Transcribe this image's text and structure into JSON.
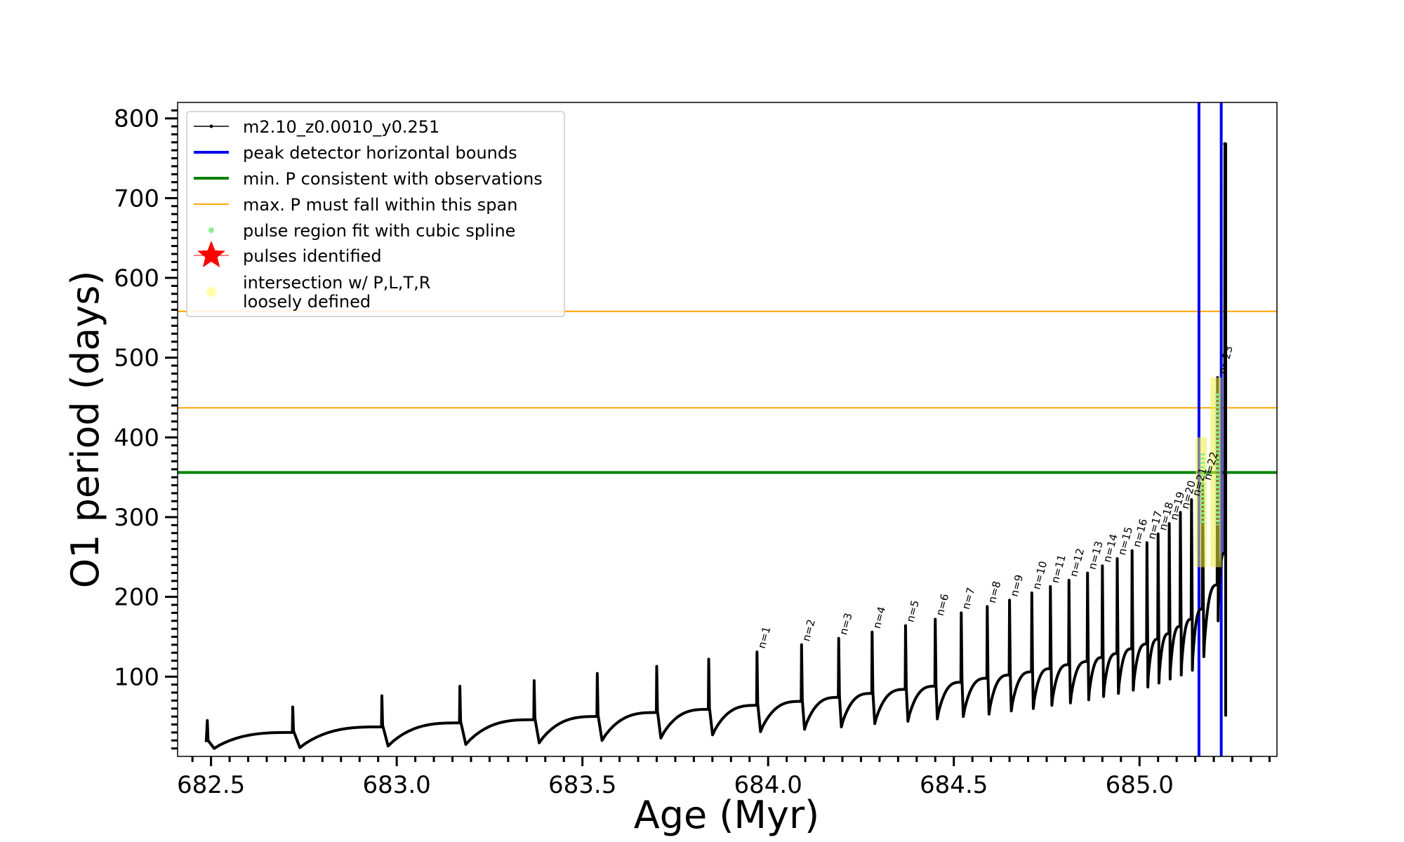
{
  "chart_data": {
    "type": "line",
    "xlabel": "Age (Myr)",
    "ylabel": "O1 period (days)",
    "xlim": [
      682.41,
      685.37
    ],
    "ylim": [
      0,
      820
    ],
    "x_ticks": [
      682.5,
      683.0,
      683.5,
      684.0,
      684.5,
      685.0
    ],
    "x_tick_labels": [
      "682.5",
      "683.0",
      "683.5",
      "684.0",
      "684.5",
      "685.0"
    ],
    "y_ticks": [
      100,
      200,
      300,
      400,
      500,
      600,
      700,
      800
    ],
    "y_tick_labels": [
      "100",
      "200",
      "300",
      "400",
      "500",
      "600",
      "700",
      "800"
    ],
    "legend_position": "upper-left",
    "legend": [
      {
        "label": "m2.10_z0.0010_y0.251",
        "kind": "line-marker",
        "color": "#000000"
      },
      {
        "label": "peak detector horizontal bounds",
        "kind": "line",
        "color": "#0000ee"
      },
      {
        "label": "min. P consistent with observations",
        "kind": "line",
        "color": "#008000"
      },
      {
        "label": "max. P must fall within this span",
        "kind": "line",
        "color": "#ffa500"
      },
      {
        "label": "pulse region fit with cubic spline",
        "kind": "dot",
        "color": "#90ee90"
      },
      {
        "label": "pulses identified",
        "kind": "star",
        "color": "#ff0000"
      },
      {
        "label": "intersection w/ P,L,T,R\nloosely defined",
        "kind": "dot",
        "color": "#ffffaa"
      }
    ],
    "hlines": [
      {
        "y": 356,
        "color": "#008000",
        "role": "min. P consistent with observations"
      },
      {
        "y": 437,
        "color": "#ffa500",
        "role": "max. P must fall within this span"
      },
      {
        "y": 558,
        "color": "#ffa500",
        "role": "max. P must fall within this span"
      }
    ],
    "vlines": [
      {
        "x": 685.16,
        "color": "#0000ee",
        "role": "peak detector horizontal bounds"
      },
      {
        "x": 685.22,
        "color": "#0000ee",
        "role": "peak detector horizontal bounds"
      }
    ],
    "series": [
      {
        "name": "m2.10_z0.0010_y0.251",
        "color": "#000000",
        "pulses": [
          {
            "x": 682.49,
            "peak": 45,
            "min": 10,
            "pre": 18
          },
          {
            "x": 682.72,
            "peak": 62,
            "min": 11,
            "pre": 30
          },
          {
            "x": 682.96,
            "peak": 76,
            "min": 13,
            "pre": 37
          },
          {
            "x": 683.17,
            "peak": 88,
            "min": 15,
            "pre": 42
          },
          {
            "x": 683.37,
            "peak": 95,
            "min": 17,
            "pre": 46
          },
          {
            "x": 683.54,
            "peak": 104,
            "min": 20,
            "pre": 50
          },
          {
            "x": 683.7,
            "peak": 113,
            "min": 23,
            "pre": 55
          },
          {
            "x": 683.84,
            "peak": 122,
            "min": 27,
            "pre": 59
          },
          {
            "x": 683.97,
            "peak": 131,
            "min": 31,
            "pre": 64,
            "label": "n=1"
          },
          {
            "x": 684.09,
            "peak": 140,
            "min": 34,
            "pre": 69,
            "label": "n=2"
          },
          {
            "x": 684.19,
            "peak": 148,
            "min": 37,
            "pre": 74,
            "label": "n=3"
          },
          {
            "x": 684.28,
            "peak": 156,
            "min": 41,
            "pre": 79,
            "label": "n=4"
          },
          {
            "x": 684.37,
            "peak": 164,
            "min": 44,
            "pre": 84,
            "label": "n=5"
          },
          {
            "x": 684.45,
            "peak": 172,
            "min": 47,
            "pre": 88,
            "label": "n=6"
          },
          {
            "x": 684.52,
            "peak": 180,
            "min": 50,
            "pre": 93,
            "label": "n=7"
          },
          {
            "x": 684.59,
            "peak": 188,
            "min": 53,
            "pre": 98,
            "label": "n=8"
          },
          {
            "x": 684.65,
            "peak": 196,
            "min": 57,
            "pre": 102,
            "label": "n=9"
          },
          {
            "x": 684.71,
            "peak": 205,
            "min": 60,
            "pre": 106,
            "label": "n=10"
          },
          {
            "x": 684.76,
            "peak": 213,
            "min": 64,
            "pre": 110,
            "label": "n=11"
          },
          {
            "x": 684.81,
            "peak": 221,
            "min": 67,
            "pre": 115,
            "label": "n=12"
          },
          {
            "x": 684.86,
            "peak": 230,
            "min": 71,
            "pre": 119,
            "label": "n=13"
          },
          {
            "x": 684.9,
            "peak": 239,
            "min": 75,
            "pre": 124,
            "label": "n=14"
          },
          {
            "x": 684.94,
            "peak": 248,
            "min": 79,
            "pre": 129,
            "label": "n=15"
          },
          {
            "x": 684.98,
            "peak": 258,
            "min": 83,
            "pre": 135,
            "label": "n=16"
          },
          {
            "x": 685.02,
            "peak": 268,
            "min": 87,
            "pre": 141,
            "label": "n=17"
          },
          {
            "x": 685.05,
            "peak": 279,
            "min": 92,
            "pre": 147,
            "label": "n=18"
          },
          {
            "x": 685.08,
            "peak": 292,
            "min": 97,
            "pre": 154,
            "label": "n=19"
          },
          {
            "x": 685.11,
            "peak": 306,
            "min": 102,
            "pre": 163,
            "label": "n=20"
          },
          {
            "x": 685.14,
            "peak": 322,
            "min": 108,
            "pre": 172,
            "label": "n=21"
          },
          {
            "x": 685.17,
            "peak": 342,
            "min": 125,
            "pre": 185,
            "label": "n=22"
          },
          {
            "x": 685.21,
            "peak": 475,
            "min": 170,
            "pre": 215,
            "label": "n=23"
          }
        ],
        "end": {
          "x": 685.23,
          "peak": 768,
          "post": 255,
          "last": 50
        }
      }
    ],
    "highlighted_pulses": [
      {
        "x": 685.17,
        "y_from": 290,
        "y_to": 400,
        "fit_color": "#90ee90",
        "loose_color": "#eeee44"
      },
      {
        "x": 685.21,
        "y_from": 290,
        "y_to": 475,
        "fit_color": "#90ee90",
        "loose_color": "#eeee44"
      }
    ]
  }
}
